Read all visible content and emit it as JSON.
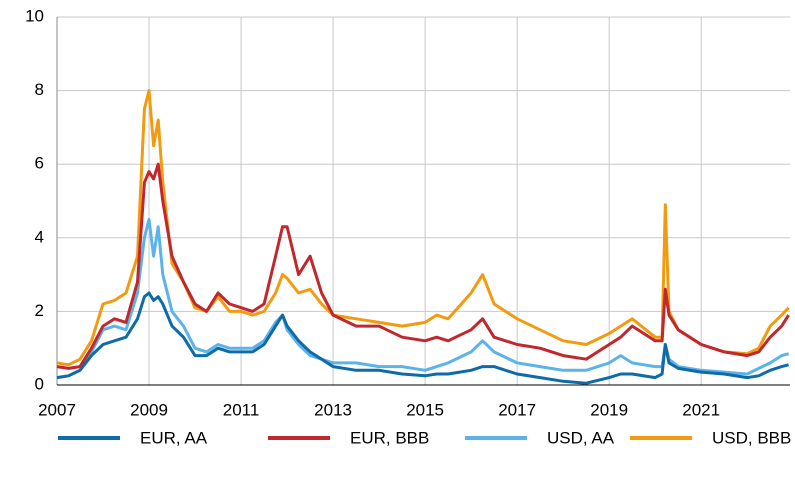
{
  "chart_data": {
    "type": "line",
    "x": [
      2007.0,
      2007.25,
      2007.5,
      2007.75,
      2008.0,
      2008.25,
      2008.5,
      2008.75,
      2008.9,
      2009.0,
      2009.1,
      2009.2,
      2009.3,
      2009.5,
      2009.75,
      2010.0,
      2010.25,
      2010.5,
      2010.75,
      2011.0,
      2011.25,
      2011.5,
      2011.75,
      2011.9,
      2012.0,
      2012.25,
      2012.5,
      2012.75,
      2013.0,
      2013.5,
      2014.0,
      2014.5,
      2015.0,
      2015.25,
      2015.5,
      2016.0,
      2016.25,
      2016.5,
      2017.0,
      2017.5,
      2018.0,
      2018.5,
      2019.0,
      2019.25,
      2019.5,
      2020.0,
      2020.15,
      2020.22,
      2020.3,
      2020.5,
      2021.0,
      2021.5,
      2022.0,
      2022.25,
      2022.5,
      2022.75,
      2022.9
    ],
    "series": [
      {
        "name": "EUR, AA",
        "color": "#0f6aa8",
        "values": [
          0.2,
          0.25,
          0.4,
          0.8,
          1.1,
          1.2,
          1.3,
          1.8,
          2.4,
          2.5,
          2.3,
          2.4,
          2.2,
          1.6,
          1.3,
          0.8,
          0.8,
          1.0,
          0.9,
          0.9,
          0.9,
          1.1,
          1.6,
          1.9,
          1.6,
          1.2,
          0.9,
          0.7,
          0.5,
          0.4,
          0.4,
          0.3,
          0.25,
          0.3,
          0.3,
          0.4,
          0.5,
          0.5,
          0.3,
          0.2,
          0.1,
          0.05,
          0.2,
          0.3,
          0.3,
          0.2,
          0.3,
          1.1,
          0.6,
          0.45,
          0.35,
          0.3,
          0.2,
          0.25,
          0.4,
          0.5,
          0.55
        ]
      },
      {
        "name": "EUR, BBB",
        "color": "#c0282d",
        "values": [
          0.5,
          0.45,
          0.5,
          1.0,
          1.6,
          1.8,
          1.7,
          2.8,
          5.5,
          5.8,
          5.6,
          6.0,
          5.0,
          3.5,
          2.8,
          2.2,
          2.0,
          2.5,
          2.2,
          2.1,
          2.0,
          2.2,
          3.5,
          4.3,
          4.3,
          3.0,
          3.5,
          2.5,
          1.9,
          1.6,
          1.6,
          1.3,
          1.2,
          1.3,
          1.2,
          1.5,
          1.8,
          1.3,
          1.1,
          1.0,
          0.8,
          0.7,
          1.1,
          1.3,
          1.6,
          1.2,
          1.2,
          2.6,
          1.9,
          1.5,
          1.1,
          0.9,
          0.8,
          0.9,
          1.3,
          1.6,
          1.9
        ]
      },
      {
        "name": "USD, AA",
        "color": "#5cb3ea",
        "values": [
          0.2,
          0.25,
          0.4,
          0.9,
          1.5,
          1.6,
          1.5,
          2.5,
          4.0,
          4.5,
          3.5,
          4.3,
          3.0,
          2.0,
          1.6,
          1.0,
          0.9,
          1.1,
          1.0,
          1.0,
          1.0,
          1.2,
          1.7,
          1.9,
          1.5,
          1.1,
          0.8,
          0.7,
          0.6,
          0.6,
          0.5,
          0.5,
          0.4,
          0.5,
          0.6,
          0.9,
          1.2,
          0.9,
          0.6,
          0.5,
          0.4,
          0.4,
          0.6,
          0.8,
          0.6,
          0.5,
          0.5,
          1.1,
          0.7,
          0.5,
          0.4,
          0.35,
          0.3,
          0.45,
          0.6,
          0.8,
          0.85
        ]
      },
      {
        "name": "USD, BBB",
        "color": "#f29b11",
        "values": [
          0.6,
          0.55,
          0.7,
          1.2,
          2.2,
          2.3,
          2.5,
          3.5,
          7.5,
          8.0,
          6.5,
          7.2,
          5.5,
          3.3,
          2.8,
          2.1,
          2.0,
          2.4,
          2.0,
          2.0,
          1.9,
          2.0,
          2.5,
          3.0,
          2.9,
          2.5,
          2.6,
          2.2,
          1.9,
          1.8,
          1.7,
          1.6,
          1.7,
          1.9,
          1.8,
          2.5,
          3.0,
          2.2,
          1.8,
          1.5,
          1.2,
          1.1,
          1.4,
          1.6,
          1.8,
          1.3,
          1.3,
          4.9,
          2.0,
          1.5,
          1.1,
          0.9,
          0.85,
          1.0,
          1.6,
          1.9,
          2.1
        ]
      }
    ],
    "xlim": [
      2007,
      2022.93
    ],
    "xticks": [
      2007,
      2009,
      2011,
      2013,
      2015,
      2017,
      2019,
      2021
    ],
    "ylim": [
      0,
      10
    ],
    "yticks": [
      0,
      2,
      4,
      6,
      8,
      10
    ],
    "grid": true
  }
}
